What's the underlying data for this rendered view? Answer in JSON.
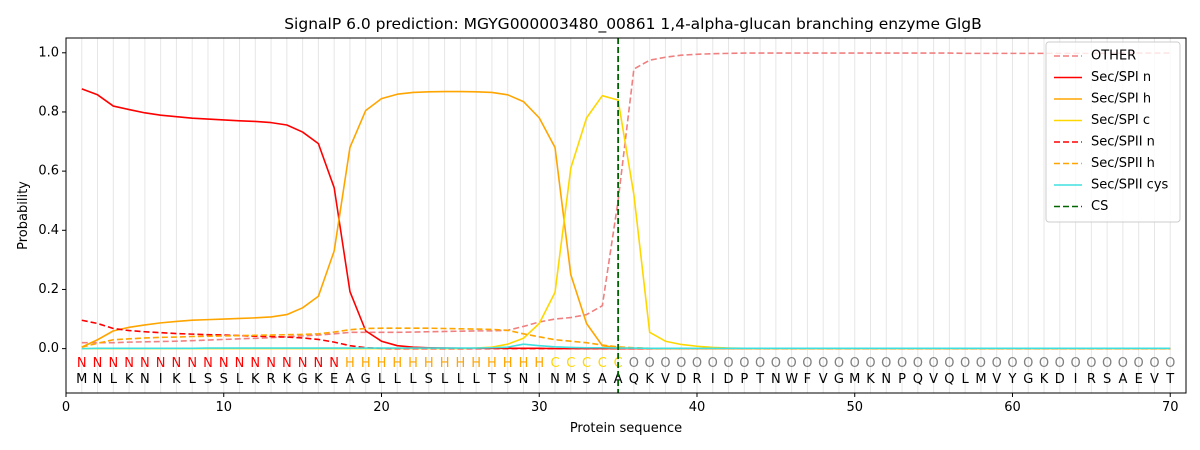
{
  "chart_data": {
    "type": "line",
    "title": "SignalP 6.0 prediction: MGYG000003480_00861 1,4-alpha-glucan branching enzyme GlgB",
    "xlabel": "Protein sequence",
    "ylabel": "Probability",
    "xlim": [
      0,
      71
    ],
    "ylim": [
      -0.15,
      1.05
    ],
    "xticks": [
      0,
      10,
      20,
      30,
      40,
      50,
      60,
      70
    ],
    "yticks": [
      "0.0",
      "0.2",
      "0.4",
      "0.6",
      "0.8",
      "1.0"
    ],
    "grid": "vertical lines at every residue",
    "legend_position": "top-right",
    "cleavage_site": 35,
    "sequence": [
      "M",
      "N",
      "L",
      "K",
      "N",
      "I",
      "K",
      "L",
      "S",
      "S",
      "L",
      "K",
      "R",
      "K",
      "G",
      "K",
      "E",
      "A",
      "G",
      "L",
      "L",
      "L",
      "S",
      "L",
      "L",
      "L",
      "T",
      "S",
      "N",
      "I",
      "N",
      "M",
      "S",
      "A",
      "A",
      "Q",
      "K",
      "V",
      "D",
      "R",
      "I",
      "D",
      "P",
      "T",
      "N",
      "W",
      "F",
      "V",
      "G",
      "M",
      "K",
      "N",
      "P",
      "Q",
      "V",
      "Q",
      "L",
      "M",
      "V",
      "Y",
      "G",
      "K",
      "D",
      "I",
      "R",
      "S",
      "A",
      "E",
      "V",
      "T"
    ],
    "region_labels": [
      "N",
      "N",
      "N",
      "N",
      "N",
      "N",
      "N",
      "N",
      "N",
      "N",
      "N",
      "N",
      "N",
      "N",
      "N",
      "N",
      "N",
      "H",
      "H",
      "H",
      "H",
      "H",
      "H",
      "H",
      "H",
      "H",
      "H",
      "H",
      "H",
      "H",
      "C",
      "C",
      "C",
      "C",
      "C",
      "O",
      "O",
      "O",
      "O",
      "O",
      "O",
      "O",
      "O",
      "O",
      "O",
      "O",
      "O",
      "O",
      "O",
      "O",
      "O",
      "O",
      "O",
      "O",
      "O",
      "O",
      "O",
      "O",
      "O",
      "O",
      "O",
      "O",
      "O",
      "O",
      "O",
      "O",
      "O",
      "O",
      "O",
      "O"
    ],
    "region_colors": {
      "N": "#ff0000",
      "H": "#ffa500",
      "C": "#ffd700",
      "O": "#808080"
    },
    "series": [
      {
        "name": "OTHER",
        "color": "#f08080",
        "dash": true,
        "values": [
          0.02,
          0.02,
          0.02,
          0.022,
          0.023,
          0.024,
          0.025,
          0.027,
          0.029,
          0.031,
          0.033,
          0.035,
          0.037,
          0.04,
          0.043,
          0.046,
          0.05,
          0.055,
          0.055,
          0.055,
          0.055,
          0.056,
          0.057,
          0.058,
          0.059,
          0.06,
          0.06,
          0.062,
          0.075,
          0.09,
          0.1,
          0.105,
          0.115,
          0.145,
          0.5,
          0.945,
          0.975,
          0.985,
          0.992,
          0.995,
          0.997,
          0.998,
          0.999,
          0.999,
          0.999,
          0.999,
          0.999,
          0.999,
          0.999,
          0.999,
          0.999,
          0.999,
          0.999,
          0.999,
          0.999,
          0.999,
          0.998,
          0.998,
          0.998,
          0.998,
          0.998,
          0.998,
          0.998,
          0.998,
          0.998,
          0.998,
          0.999,
          0.999,
          0.999,
          0.999
        ]
      },
      {
        "name": "Sec/SPI n",
        "color": "#ff0000",
        "dash": false,
        "values": [
          0.878,
          0.858,
          0.82,
          0.808,
          0.797,
          0.789,
          0.784,
          0.779,
          0.776,
          0.773,
          0.77,
          0.768,
          0.764,
          0.756,
          0.732,
          0.693,
          0.544,
          0.193,
          0.06,
          0.025,
          0.01,
          0.005,
          0.003,
          0.002,
          0.001,
          0.001,
          0.001,
          0.001,
          0.001,
          0.001,
          0,
          0,
          0,
          0,
          0,
          0,
          0,
          0,
          0,
          0,
          0,
          0,
          0,
          0,
          0,
          0,
          0,
          0,
          0,
          0,
          0,
          0,
          0,
          0,
          0,
          0,
          0,
          0,
          0,
          0,
          0,
          0,
          0,
          0,
          0,
          0,
          0,
          0,
          0,
          0
        ]
      },
      {
        "name": "Sec/SPI h",
        "color": "#ffa500",
        "dash": false,
        "values": [
          0.005,
          0.03,
          0.06,
          0.072,
          0.08,
          0.087,
          0.092,
          0.096,
          0.098,
          0.1,
          0.102,
          0.104,
          0.107,
          0.115,
          0.138,
          0.177,
          0.33,
          0.68,
          0.805,
          0.845,
          0.86,
          0.866,
          0.868,
          0.869,
          0.869,
          0.868,
          0.866,
          0.858,
          0.835,
          0.78,
          0.68,
          0.25,
          0.085,
          0.01,
          0.003,
          0.001,
          0,
          0,
          0,
          0,
          0,
          0,
          0,
          0,
          0,
          0,
          0,
          0,
          0,
          0,
          0,
          0,
          0,
          0,
          0,
          0,
          0,
          0,
          0,
          0,
          0,
          0,
          0,
          0,
          0,
          0,
          0,
          0,
          0,
          0
        ]
      },
      {
        "name": "Sec/SPI c",
        "color": "#ffd700",
        "dash": false,
        "values": [
          0,
          0,
          0,
          0,
          0,
          0,
          0,
          0,
          0,
          0,
          0,
          0,
          0,
          0,
          0,
          0,
          0,
          0,
          0,
          0,
          0,
          0,
          0,
          0,
          0,
          0.002,
          0.005,
          0.015,
          0.035,
          0.085,
          0.19,
          0.61,
          0.78,
          0.855,
          0.84,
          0.52,
          0.055,
          0.025,
          0.014,
          0.008,
          0.004,
          0.002,
          0.001,
          0,
          0,
          0,
          0,
          0,
          0,
          0,
          0,
          0,
          0,
          0,
          0,
          0,
          0,
          0,
          0,
          0,
          0,
          0,
          0,
          0,
          0,
          0,
          0,
          0,
          0,
          0
        ]
      },
      {
        "name": "Sec/SPII n",
        "color": "#ff0000",
        "dash": true,
        "values": [
          0.096,
          0.085,
          0.068,
          0.061,
          0.057,
          0.054,
          0.051,
          0.049,
          0.047,
          0.046,
          0.044,
          0.042,
          0.041,
          0.039,
          0.036,
          0.031,
          0.022,
          0.01,
          0.003,
          0.001,
          0,
          0,
          0,
          0,
          0,
          0,
          0,
          0,
          0,
          0,
          0,
          0,
          0,
          0,
          0,
          0,
          0,
          0,
          0,
          0,
          0,
          0,
          0,
          0,
          0,
          0,
          0,
          0,
          0,
          0,
          0,
          0,
          0,
          0,
          0,
          0,
          0,
          0,
          0,
          0,
          0,
          0,
          0,
          0,
          0,
          0,
          0,
          0,
          0,
          0
        ]
      },
      {
        "name": "Sec/SPII h",
        "color": "#ffa500",
        "dash": true,
        "values": [
          0.005,
          0.018,
          0.03,
          0.033,
          0.036,
          0.038,
          0.039,
          0.041,
          0.042,
          0.043,
          0.044,
          0.045,
          0.046,
          0.047,
          0.048,
          0.05,
          0.056,
          0.064,
          0.068,
          0.069,
          0.069,
          0.069,
          0.069,
          0.068,
          0.067,
          0.066,
          0.065,
          0.062,
          0.05,
          0.04,
          0.03,
          0.025,
          0.02,
          0.012,
          0.006,
          0.003,
          0.001,
          0,
          0,
          0,
          0,
          0,
          0,
          0,
          0,
          0,
          0,
          0,
          0,
          0,
          0,
          0,
          0,
          0,
          0,
          0,
          0,
          0,
          0,
          0,
          0,
          0,
          0,
          0,
          0,
          0,
          0,
          0,
          0,
          0
        ]
      },
      {
        "name": "Sec/SPII cys",
        "color": "#40e0e0",
        "dash": false,
        "values": [
          0,
          0.001,
          0.001,
          0.001,
          0.001,
          0.001,
          0.001,
          0.001,
          0.002,
          0.002,
          0.002,
          0.002,
          0.002,
          0.002,
          0.002,
          0.002,
          0.002,
          0.002,
          0.002,
          0.002,
          0.002,
          0.002,
          0.002,
          0.002,
          0.002,
          0.002,
          0.003,
          0.005,
          0.015,
          0.01,
          0.006,
          0.004,
          0.003,
          0.003,
          0.002,
          0.002,
          0.001,
          0.001,
          0.001,
          0.001,
          0.001,
          0.001,
          0.001,
          0.001,
          0.001,
          0.001,
          0.001,
          0.001,
          0.001,
          0.001,
          0.001,
          0.001,
          0.001,
          0.001,
          0.001,
          0.001,
          0.001,
          0.001,
          0.001,
          0.001,
          0.001,
          0.001,
          0.001,
          0.001,
          0.001,
          0.001,
          0.001,
          0.001,
          0.001,
          0.001
        ]
      }
    ],
    "cs_legend": {
      "name": "CS",
      "color": "#006400"
    }
  }
}
